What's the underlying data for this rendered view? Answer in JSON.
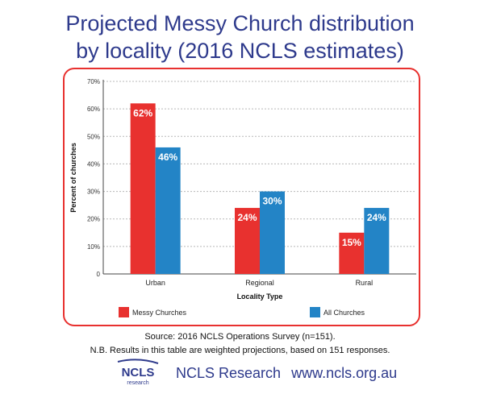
{
  "title": [
    "Projected Messy Church distribution",
    "by locality (2016 NCLS estimates)"
  ],
  "chart_data": {
    "type": "bar",
    "categories": [
      "Urban",
      "Regional",
      "Rural"
    ],
    "series": [
      {
        "name": "Messy Churches",
        "values": [
          62,
          24,
          15
        ],
        "labels": [
          "62%",
          "24%",
          "15%"
        ],
        "color": "#e8312f"
      },
      {
        "name": "All Churches",
        "values": [
          46,
          30,
          24
        ],
        "labels": [
          "46%",
          "30%",
          "24%"
        ],
        "color": "#2384c6"
      }
    ],
    "xlabel": "Locality Type",
    "ylabel": "Percent of churches",
    "ylim": [
      0,
      70
    ],
    "yticks": [
      "0",
      "10%",
      "20%",
      "30%",
      "40%",
      "50%",
      "60%",
      "70%"
    ],
    "grid": "horizontal-dotted",
    "legend_position": "bottom"
  },
  "footer": {
    "source": "Source: 2016 NCLS Operations Survey (n=151).",
    "note": "N.B. Results in this table are weighted projections, based on 151 responses."
  },
  "brand": {
    "logo_text": "NCLS",
    "logo_subtext": "research",
    "name": "NCLS Research",
    "url": "www.ncls.org.au",
    "color": "#2e3a8c"
  }
}
